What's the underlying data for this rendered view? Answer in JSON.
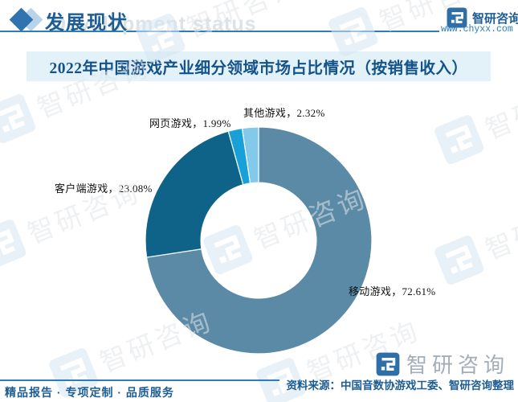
{
  "header": {
    "section_title": "发展现状",
    "section_watermark": "Development status",
    "brand": {
      "name": "智研咨询",
      "url": "www.chyxx.com"
    }
  },
  "title": {
    "text": "2022年中国游戏产业细分领域市场占比情况（按销售收入）"
  },
  "chart_data": {
    "type": "pie",
    "subtype": "donut",
    "title": "2022年中国游戏产业细分领域市场占比情况（按销售收入）",
    "categories": [
      "移动游戏",
      "客户端游戏",
      "网页游戏",
      "其他游戏"
    ],
    "values": [
      72.61,
      23.08,
      1.99,
      2.32
    ],
    "unit": "%",
    "colors": [
      "#5b8aa6",
      "#0f6288",
      "#18a0d8",
      "#82c9ea"
    ],
    "slice_labels": [
      "移动游戏，72.61%",
      "客户端游戏，23.08%",
      "网页游戏，1.99%",
      "其他游戏，2.32%"
    ],
    "start_angle_deg": 0,
    "direction": "clockwise",
    "inner_radius_ratio": 0.51,
    "legend": "none",
    "label_position": "outside"
  },
  "watermark": {
    "text": "智研咨询"
  },
  "footer": {
    "tagline": "精品报告 · 专项定制 · 品质服务",
    "source": "资料来源：中国音数协游戏工委、智研咨询整理",
    "brand_name": "智研咨询"
  },
  "colors": {
    "accent_blue": "#2e7cb8",
    "heading_blue": "#1d5d93",
    "title_bg": "#e3f1f9",
    "title_text": "#14528a",
    "label_text": "#111111",
    "watermark_gray": "#e1e5e9",
    "watermark_icon_blue": "#d6e7f4"
  }
}
